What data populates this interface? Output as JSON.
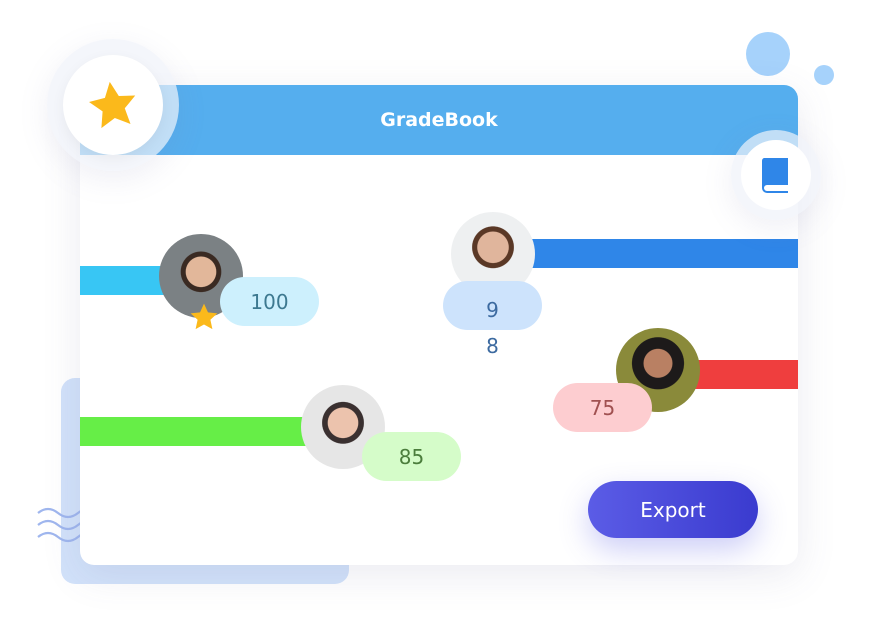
{
  "app": {
    "title": "GradeBook"
  },
  "colors": {
    "header": "#55aeee",
    "accent": "#4a4bdb",
    "star": "#fbb91b"
  },
  "students": [
    {
      "score": "100",
      "bar_color": "#38c6f4",
      "pill_color": "#cdf0fd",
      "text_color": "#3d7990",
      "starred": true
    },
    {
      "score": "98",
      "bar_color": "#2f86e8",
      "pill_color": "#cde3fc",
      "text_color": "#3c6aa0",
      "starred": false
    },
    {
      "score": "75",
      "bar_color": "#ef3e3e",
      "pill_color": "#fdcdd0",
      "text_color": "#a05050",
      "starred": false
    },
    {
      "score": "85",
      "bar_color": "#66ee47",
      "pill_color": "#d5fcc9",
      "text_color": "#4b7d3c",
      "starred": false
    }
  ],
  "actions": {
    "export_label": "Export"
  },
  "icons": [
    "star-icon",
    "book-icon",
    "wave-icon"
  ]
}
